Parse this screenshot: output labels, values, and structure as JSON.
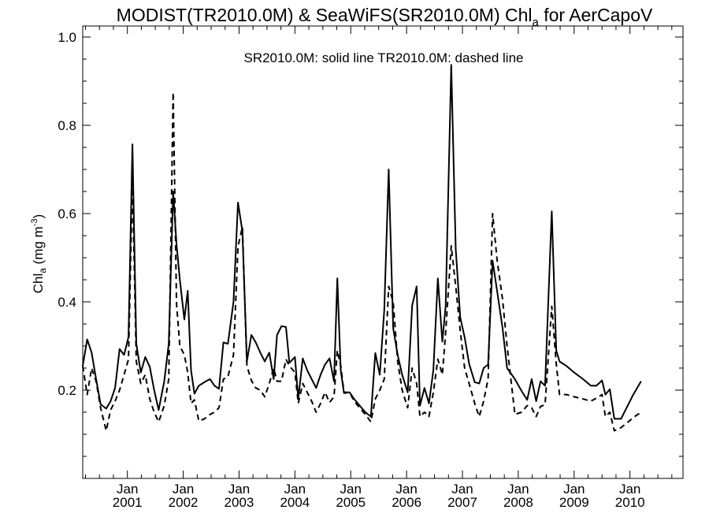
{
  "chart_data": {
    "type": "line",
    "title": {
      "main": "MODIST(TR2010.0M) & SeaWiFS(SR2010.0M)  Chl",
      "sub": "a",
      "tail": " for AerCapoV"
    },
    "annotation": "SR2010.0M: solid line   TR2010.0M: dashed line",
    "ylabel": {
      "main": "Chl",
      "sub": "a",
      "unit": " (mg m",
      "sup": "-3",
      "close": ")"
    },
    "xlim": [
      2000.2,
      2010.95
    ],
    "ylim": [
      0.0,
      1.025
    ],
    "yticks": [
      {
        "value": 0.2,
        "label": "0.2"
      },
      {
        "value": 0.4,
        "label": "0.4"
      },
      {
        "value": 0.6,
        "label": "0.6"
      },
      {
        "value": 0.8,
        "label": "0.8"
      },
      {
        "value": 1.0,
        "label": "1.0"
      }
    ],
    "xticks": [
      {
        "value": 2001.0,
        "month": "Jan",
        "year": "2001"
      },
      {
        "value": 2002.0,
        "month": "Jan",
        "year": "2002"
      },
      {
        "value": 2003.0,
        "month": "Jan",
        "year": "2003"
      },
      {
        "value": 2004.0,
        "month": "Jan",
        "year": "2004"
      },
      {
        "value": 2005.0,
        "month": "Jan",
        "year": "2005"
      },
      {
        "value": 2006.0,
        "month": "Jan",
        "year": "2006"
      },
      {
        "value": 2007.0,
        "month": "Jan",
        "year": "2007"
      },
      {
        "value": 2008.0,
        "month": "Jan",
        "year": "2008"
      },
      {
        "value": 2009.0,
        "month": "Jan",
        "year": "2009"
      },
      {
        "value": 2010.0,
        "month": "Jan",
        "year": "2010"
      }
    ],
    "series": [
      {
        "name": "SR2010.0M",
        "style": "solid",
        "color": "#000000",
        "points": [
          [
            2000.2,
            0.255
          ],
          [
            2000.28,
            0.315
          ],
          [
            2000.36,
            0.285
          ],
          [
            2000.44,
            0.225
          ],
          [
            2000.52,
            0.168
          ],
          [
            2000.62,
            0.158
          ],
          [
            2000.7,
            0.175
          ],
          [
            2000.78,
            0.205
          ],
          [
            2000.86,
            0.293
          ],
          [
            2000.94,
            0.28
          ],
          [
            2001.02,
            0.32
          ],
          [
            2001.09,
            0.757
          ],
          [
            2001.16,
            0.305
          ],
          [
            2001.24,
            0.24
          ],
          [
            2001.32,
            0.275
          ],
          [
            2001.4,
            0.253
          ],
          [
            2001.48,
            0.2
          ],
          [
            2001.56,
            0.155
          ],
          [
            2001.66,
            0.22
          ],
          [
            2001.74,
            0.305
          ],
          [
            2001.82,
            0.65
          ],
          [
            2001.88,
            0.53
          ],
          [
            2001.94,
            0.45
          ],
          [
            2002.02,
            0.36
          ],
          [
            2002.08,
            0.425
          ],
          [
            2002.14,
            0.245
          ],
          [
            2002.2,
            0.192
          ],
          [
            2002.28,
            0.21
          ],
          [
            2002.38,
            0.218
          ],
          [
            2002.48,
            0.225
          ],
          [
            2002.56,
            0.21
          ],
          [
            2002.64,
            0.203
          ],
          [
            2002.72,
            0.308
          ],
          [
            2002.8,
            0.305
          ],
          [
            2002.9,
            0.4
          ],
          [
            2002.98,
            0.625
          ],
          [
            2003.06,
            0.56
          ],
          [
            2003.14,
            0.265
          ],
          [
            2003.22,
            0.325
          ],
          [
            2003.3,
            0.308
          ],
          [
            2003.38,
            0.285
          ],
          [
            2003.46,
            0.265
          ],
          [
            2003.54,
            0.285
          ],
          [
            2003.62,
            0.225
          ],
          [
            2003.68,
            0.325
          ],
          [
            2003.76,
            0.345
          ],
          [
            2003.84,
            0.343
          ],
          [
            2003.9,
            0.262
          ],
          [
            2004.0,
            0.275
          ],
          [
            2004.06,
            0.18
          ],
          [
            2004.14,
            0.272
          ],
          [
            2004.22,
            0.245
          ],
          [
            2004.3,
            0.225
          ],
          [
            2004.38,
            0.205
          ],
          [
            2004.46,
            0.235
          ],
          [
            2004.54,
            0.258
          ],
          [
            2004.62,
            0.272
          ],
          [
            2004.7,
            0.22
          ],
          [
            2004.76,
            0.453
          ],
          [
            2004.82,
            0.245
          ],
          [
            2004.88,
            0.193
          ],
          [
            2004.98,
            0.195
          ],
          [
            2005.06,
            0.18
          ],
          [
            2005.16,
            0.165
          ],
          [
            2005.26,
            0.15
          ],
          [
            2005.36,
            0.14
          ],
          [
            2005.44,
            0.284
          ],
          [
            2005.52,
            0.235
          ],
          [
            2005.6,
            0.382
          ],
          [
            2005.68,
            0.7
          ],
          [
            2005.76,
            0.34
          ],
          [
            2005.84,
            0.28
          ],
          [
            2005.92,
            0.235
          ],
          [
            2006.02,
            0.195
          ],
          [
            2006.1,
            0.392
          ],
          [
            2006.18,
            0.435
          ],
          [
            2006.24,
            0.165
          ],
          [
            2006.32,
            0.205
          ],
          [
            2006.4,
            0.17
          ],
          [
            2006.48,
            0.245
          ],
          [
            2006.56,
            0.453
          ],
          [
            2006.64,
            0.31
          ],
          [
            2006.7,
            0.39
          ],
          [
            2006.8,
            0.937
          ],
          [
            2006.88,
            0.52
          ],
          [
            2006.96,
            0.365
          ],
          [
            2007.04,
            0.32
          ],
          [
            2007.12,
            0.26
          ],
          [
            2007.22,
            0.218
          ],
          [
            2007.3,
            0.215
          ],
          [
            2007.38,
            0.25
          ],
          [
            2007.46,
            0.258
          ],
          [
            2007.54,
            0.493
          ],
          [
            2007.62,
            0.425
          ],
          [
            2007.72,
            0.34
          ],
          [
            2007.8,
            0.25
          ],
          [
            2007.94,
            0.225
          ],
          [
            2008.06,
            0.198
          ],
          [
            2008.16,
            0.178
          ],
          [
            2008.24,
            0.225
          ],
          [
            2008.32,
            0.175
          ],
          [
            2008.4,
            0.22
          ],
          [
            2008.48,
            0.21
          ],
          [
            2008.6,
            0.605
          ],
          [
            2008.68,
            0.29
          ],
          [
            2008.74,
            0.265
          ],
          [
            2008.86,
            0.255
          ],
          [
            2009.0,
            0.24
          ],
          [
            2009.16,
            0.225
          ],
          [
            2009.3,
            0.21
          ],
          [
            2009.4,
            0.21
          ],
          [
            2009.5,
            0.222
          ],
          [
            2009.56,
            0.19
          ],
          [
            2009.64,
            0.202
          ],
          [
            2009.72,
            0.135
          ],
          [
            2009.84,
            0.135
          ],
          [
            2009.94,
            0.16
          ],
          [
            2010.06,
            0.19
          ],
          [
            2010.2,
            0.22
          ]
        ]
      },
      {
        "name": "TR2010.0M",
        "style": "dashed",
        "color": "#000000",
        "points": [
          [
            2000.2,
            0.255
          ],
          [
            2000.28,
            0.19
          ],
          [
            2000.36,
            0.25
          ],
          [
            2000.44,
            0.22
          ],
          [
            2000.52,
            0.16
          ],
          [
            2000.62,
            0.108
          ],
          [
            2000.7,
            0.155
          ],
          [
            2000.78,
            0.175
          ],
          [
            2000.86,
            0.2
          ],
          [
            2000.94,
            0.235
          ],
          [
            2001.02,
            0.27
          ],
          [
            2001.09,
            0.68
          ],
          [
            2001.16,
            0.265
          ],
          [
            2001.24,
            0.215
          ],
          [
            2001.32,
            0.235
          ],
          [
            2001.4,
            0.18
          ],
          [
            2001.48,
            0.15
          ],
          [
            2001.56,
            0.128
          ],
          [
            2001.66,
            0.165
          ],
          [
            2001.74,
            0.225
          ],
          [
            2001.82,
            0.875
          ],
          [
            2001.88,
            0.395
          ],
          [
            2001.94,
            0.3
          ],
          [
            2002.02,
            0.28
          ],
          [
            2002.08,
            0.24
          ],
          [
            2002.14,
            0.17
          ],
          [
            2002.2,
            0.178
          ],
          [
            2002.28,
            0.13
          ],
          [
            2002.38,
            0.135
          ],
          [
            2002.48,
            0.145
          ],
          [
            2002.56,
            0.15
          ],
          [
            2002.64,
            0.16
          ],
          [
            2002.72,
            0.225
          ],
          [
            2002.8,
            0.23
          ],
          [
            2002.9,
            0.28
          ],
          [
            2002.98,
            0.525
          ],
          [
            2003.06,
            0.57
          ],
          [
            2003.14,
            0.255
          ],
          [
            2003.22,
            0.222
          ],
          [
            2003.3,
            0.205
          ],
          [
            2003.38,
            0.2
          ],
          [
            2003.46,
            0.185
          ],
          [
            2003.54,
            0.215
          ],
          [
            2003.62,
            0.25
          ],
          [
            2003.68,
            0.22
          ],
          [
            2003.76,
            0.22
          ],
          [
            2003.84,
            0.27
          ],
          [
            2003.9,
            0.255
          ],
          [
            2004.0,
            0.24
          ],
          [
            2004.06,
            0.17
          ],
          [
            2004.14,
            0.215
          ],
          [
            2004.22,
            0.195
          ],
          [
            2004.3,
            0.175
          ],
          [
            2004.38,
            0.15
          ],
          [
            2004.46,
            0.17
          ],
          [
            2004.54,
            0.195
          ],
          [
            2004.62,
            0.172
          ],
          [
            2004.7,
            0.185
          ],
          [
            2004.76,
            0.29
          ],
          [
            2004.82,
            0.255
          ],
          [
            2004.88,
            0.195
          ],
          [
            2004.98,
            0.195
          ],
          [
            2005.06,
            0.175
          ],
          [
            2005.16,
            0.16
          ],
          [
            2005.26,
            0.145
          ],
          [
            2005.36,
            0.128
          ],
          [
            2005.44,
            0.18
          ],
          [
            2005.52,
            0.2
          ],
          [
            2005.6,
            0.225
          ],
          [
            2005.68,
            0.435
          ],
          [
            2005.76,
            0.4
          ],
          [
            2005.84,
            0.265
          ],
          [
            2005.92,
            0.2
          ],
          [
            2006.02,
            0.16
          ],
          [
            2006.1,
            0.25
          ],
          [
            2006.18,
            0.215
          ],
          [
            2006.24,
            0.14
          ],
          [
            2006.32,
            0.15
          ],
          [
            2006.4,
            0.14
          ],
          [
            2006.48,
            0.195
          ],
          [
            2006.56,
            0.27
          ],
          [
            2006.64,
            0.235
          ],
          [
            2006.7,
            0.33
          ],
          [
            2006.8,
            0.527
          ],
          [
            2006.88,
            0.435
          ],
          [
            2006.96,
            0.335
          ],
          [
            2007.04,
            0.25
          ],
          [
            2007.12,
            0.215
          ],
          [
            2007.22,
            0.17
          ],
          [
            2007.3,
            0.14
          ],
          [
            2007.38,
            0.175
          ],
          [
            2007.46,
            0.225
          ],
          [
            2007.54,
            0.6
          ],
          [
            2007.62,
            0.495
          ],
          [
            2007.72,
            0.405
          ],
          [
            2007.8,
            0.3
          ],
          [
            2007.94,
            0.145
          ],
          [
            2008.06,
            0.15
          ],
          [
            2008.16,
            0.165
          ],
          [
            2008.24,
            0.16
          ],
          [
            2008.32,
            0.14
          ],
          [
            2008.4,
            0.163
          ],
          [
            2008.48,
            0.167
          ],
          [
            2008.6,
            0.39
          ],
          [
            2008.68,
            0.26
          ],
          [
            2008.74,
            0.19
          ],
          [
            2008.86,
            0.19
          ],
          [
            2009.0,
            0.185
          ],
          [
            2009.16,
            0.18
          ],
          [
            2009.3,
            0.175
          ],
          [
            2009.4,
            0.182
          ],
          [
            2009.5,
            0.19
          ],
          [
            2009.56,
            0.14
          ],
          [
            2009.64,
            0.15
          ],
          [
            2009.72,
            0.108
          ],
          [
            2009.84,
            0.115
          ],
          [
            2009.94,
            0.125
          ],
          [
            2010.06,
            0.138
          ],
          [
            2010.2,
            0.15
          ]
        ]
      }
    ]
  }
}
